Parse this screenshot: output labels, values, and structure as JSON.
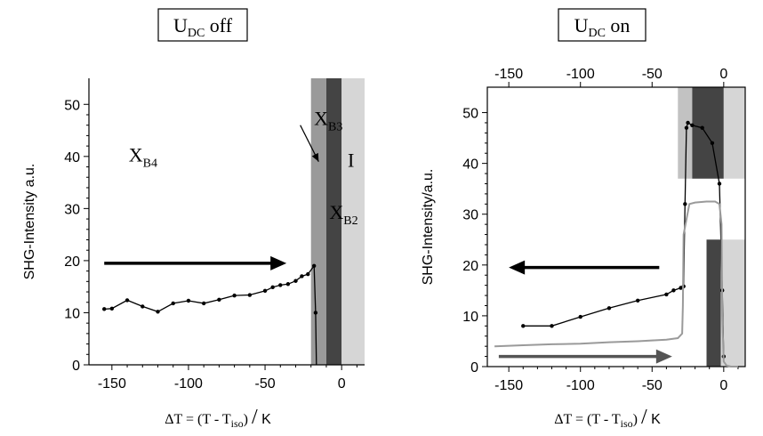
{
  "chart_data": [
    {
      "type": "line",
      "title": "U_DC off",
      "title_main": "U",
      "title_sub": "DC",
      "title_rest": " off",
      "xlabel": "ΔT = (T - T_iso) / K",
      "ylabel": "SHG-Intensity  a.u.",
      "xlim": [
        -165,
        15
      ],
      "ylim": [
        0,
        55
      ],
      "x_ticks": [
        -150,
        -100,
        -50,
        0
      ],
      "x_tick_labels": [
        "-150",
        "-100",
        "-50",
        "0"
      ],
      "y_ticks": [
        0,
        10,
        20,
        30,
        40,
        50
      ],
      "y_tick_labels": [
        "0",
        "10",
        "20",
        "30",
        "40",
        "50"
      ],
      "phase_bands": [
        {
          "x": [
            -20,
            -10
          ],
          "color": "#9a9a9a"
        },
        {
          "x": [
            -10,
            0
          ],
          "color": "#444444"
        },
        {
          "x": [
            0,
            15
          ],
          "color": "#d6d6d6"
        }
      ],
      "phase_labels": [
        {
          "main": "X",
          "sub": "B4",
          "x": -139,
          "y": 39
        },
        {
          "main": "X",
          "sub": "B3",
          "x": -18,
          "y": 46
        },
        {
          "main": "X",
          "sub": "B2",
          "x": -8,
          "y": 28
        },
        {
          "main": "I",
          "sub": "",
          "x": 4,
          "y": 38
        }
      ],
      "arrow": {
        "x_from": -155,
        "x_to": -36,
        "y": 19.5,
        "direction": "right",
        "color": "#000000"
      },
      "annotation_arrow": {
        "x_from": -27,
        "y_from": 46,
        "x_to": -15,
        "y_to": 39
      },
      "series": [
        {
          "x": [
            -155,
            -150,
            -140,
            -130,
            -120,
            -110,
            -100,
            -90,
            -80,
            -70,
            -60,
            -50,
            -45,
            -40,
            -35,
            -30,
            -26,
            -22,
            -18,
            -17,
            -16.5
          ],
          "y": [
            10.7,
            10.8,
            12.4,
            11.2,
            10.2,
            11.8,
            12.3,
            11.8,
            12.5,
            13.3,
            13.4,
            14.2,
            14.9,
            15.3,
            15.5,
            16.1,
            17.0,
            17.4,
            19.0,
            10.0,
            0.0
          ],
          "color": "#000000"
        }
      ]
    },
    {
      "type": "line",
      "title": "U_DC on",
      "title_main": "U",
      "title_sub": "DC",
      "title_rest": " on",
      "xlabel": "ΔT = (T - T_iso) / K",
      "ylabel": "SHG-Intensity/a.u.",
      "xlim": [
        -165,
        15
      ],
      "ylim": [
        0,
        55
      ],
      "x_ticks": [
        -150,
        -100,
        -50,
        0
      ],
      "x_tick_labels": [
        "-150",
        "-100",
        "-50",
        "0"
      ],
      "top_ticks": [
        -150,
        -100,
        -50,
        0
      ],
      "top_tick_labels": [
        "-150",
        "-100",
        "-50",
        "0"
      ],
      "y_ticks": [
        0,
        10,
        20,
        30,
        40,
        50
      ],
      "y_tick_labels": [
        "0",
        "10",
        "20",
        "30",
        "40",
        "50"
      ],
      "phase_bands_upper": [
        {
          "x": [
            -32,
            -22
          ],
          "color": "#c2c2c2"
        },
        {
          "x": [
            -22,
            0
          ],
          "color": "#444444"
        },
        {
          "x": [
            0,
            15
          ],
          "color": "#d6d6d6"
        }
      ],
      "phase_bands_lower": [
        {
          "x": [
            -12,
            -2
          ],
          "color": "#444444"
        },
        {
          "x": [
            -2,
            15
          ],
          "color": "#d6d6d6"
        }
      ],
      "arrows": [
        {
          "x_from": -45,
          "x_to": -150,
          "y": 19.5,
          "direction": "left",
          "color": "#000000"
        },
        {
          "x_from": -157,
          "x_to": -36,
          "y": 2,
          "direction": "right",
          "color": "#555555"
        }
      ],
      "series": [
        {
          "x": [
            -140,
            -120,
            -100,
            -80,
            -60,
            -40,
            -35,
            -30,
            -28,
            -27,
            -26,
            -25,
            -22,
            -15,
            -8,
            -3,
            -1,
            0
          ],
          "y": [
            8.0,
            8.0,
            9.8,
            11.5,
            13.0,
            14.2,
            15.0,
            15.5,
            15.8,
            32.0,
            47.0,
            48.0,
            47.5,
            47.0,
            44.0,
            36.0,
            15.0,
            2.0
          ],
          "color": "#000000"
        },
        {
          "x": [
            -160,
            -140,
            -120,
            -100,
            -80,
            -60,
            -40,
            -32,
            -29,
            -28.5,
            -28,
            -24,
            -20,
            -12,
            -6,
            -3,
            -1.5,
            -1,
            0,
            2,
            5,
            10
          ],
          "y": [
            4.0,
            4.2,
            4.4,
            4.5,
            4.8,
            5.0,
            5.3,
            5.6,
            6.5,
            12.0,
            26.0,
            32.0,
            32.3,
            32.5,
            32.5,
            32.0,
            28.0,
            10.0,
            1.0,
            0.2,
            0.0,
            0.0
          ],
          "color": "#9a9a9a"
        }
      ]
    }
  ]
}
